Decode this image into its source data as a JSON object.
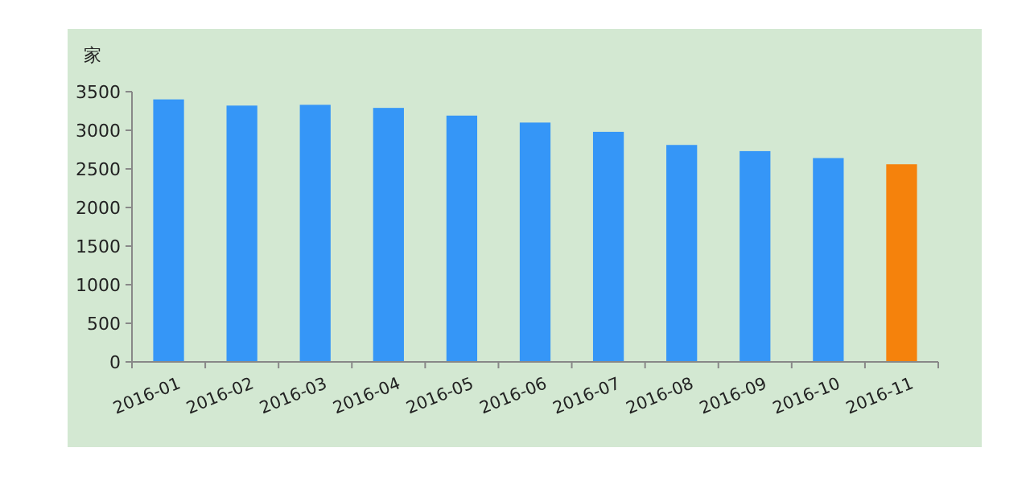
{
  "chart_data": {
    "type": "bar",
    "ylabel": "家",
    "categories": [
      "2016-01",
      "2016-02",
      "2016-03",
      "2016-04",
      "2016-05",
      "2016-06",
      "2016-07",
      "2016-08",
      "2016-09",
      "2016-10",
      "2016-11"
    ],
    "values": [
      3400,
      3320,
      3330,
      3290,
      3190,
      3100,
      2980,
      2810,
      2730,
      2640,
      2560
    ],
    "colors": [
      "#3596f7",
      "#3596f7",
      "#3596f7",
      "#3596f7",
      "#3596f7",
      "#3596f7",
      "#3596f7",
      "#3596f7",
      "#3596f7",
      "#3596f7",
      "#f5820c"
    ],
    "ylim": [
      0,
      3500
    ],
    "yticks": [
      0,
      500,
      1000,
      1500,
      2000,
      2500,
      3000,
      3500
    ]
  }
}
